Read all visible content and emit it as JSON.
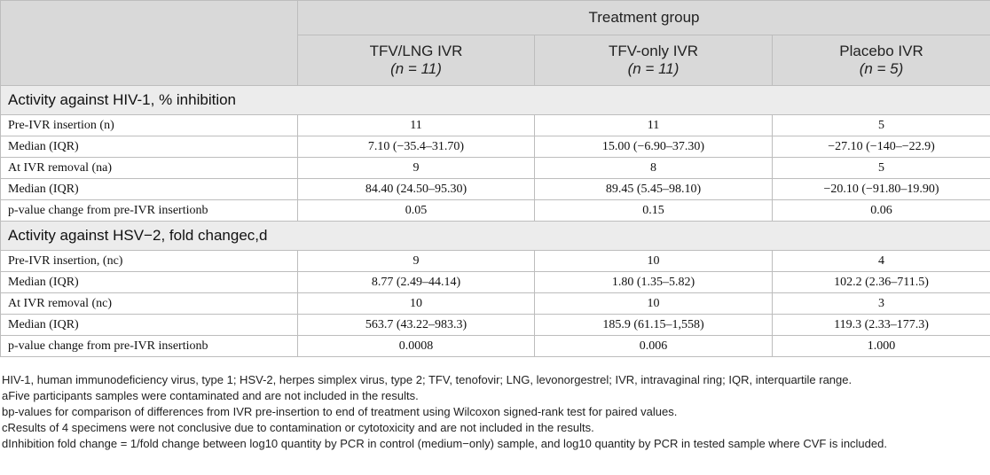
{
  "header": {
    "group_title": "Treatment group",
    "columns": [
      {
        "name": "TFV/LNG IVR",
        "n": "(n = 11)"
      },
      {
        "name": "TFV-only IVR",
        "n": "(n = 11)"
      },
      {
        "name": "Placebo IVR",
        "n": "(n = 5)"
      }
    ]
  },
  "sections": [
    {
      "title": "Activity against HIV-1, % inhibition",
      "rows": [
        {
          "label": "Pre-IVR insertion (n)",
          "values": [
            "11",
            "11",
            "5"
          ]
        },
        {
          "label": "Median (IQR)",
          "values": [
            "7.10 (−35.4–31.70)",
            "15.00 (−6.90–37.30)",
            "−27.10 (−140–−22.9)"
          ]
        },
        {
          "label": "At IVR removal (na)",
          "values": [
            "9",
            "8",
            "5"
          ]
        },
        {
          "label": "Median (IQR)",
          "values": [
            "84.40 (24.50–95.30)",
            "89.45 (5.45–98.10)",
            "−20.10 (−91.80–19.90)"
          ]
        },
        {
          "label": "p-value change from pre-IVR insertionb",
          "values": [
            "0.05",
            "0.15",
            "0.06"
          ]
        }
      ]
    },
    {
      "title": "Activity against HSV−2, fold changec,d",
      "rows": [
        {
          "label": "Pre-IVR insertion, (nc)",
          "values": [
            "9",
            "10",
            "4"
          ]
        },
        {
          "label": "Median (IQR)",
          "values": [
            "8.77 (2.49–44.14)",
            "1.80 (1.35–5.82)",
            "102.2 (2.36–711.5)"
          ]
        },
        {
          "label": "At IVR removal (nc)",
          "values": [
            "10",
            "10",
            "3"
          ]
        },
        {
          "label": "Median (IQR)",
          "values": [
            "563.7 (43.22–983.3)",
            "185.9 (61.15–1,558)",
            "119.3 (2.33–177.3)"
          ]
        },
        {
          "label": "p-value change from pre-IVR insertionb",
          "values": [
            "0.0008",
            "0.006",
            "1.000"
          ]
        }
      ]
    }
  ],
  "footnotes": [
    "HIV-1, human immunodeficiency virus, type 1; HSV-2, herpes simplex virus, type 2; TFV, tenofovir; LNG, levonorgestrel; IVR, intravaginal ring; IQR, interquartile range.",
    "aFive participants samples were contaminated and are not included in the results.",
    "bp-values for comparison of differences from IVR pre-insertion to end of treatment using Wilcoxon signed-rank test for paired values.",
    "cResults of 4 specimens were not conclusive due to contamination or cytotoxicity and are not included in the results.",
    "dInhibition fold change = 1/fold change between log10 quantity by PCR in control (medium−only) sample, and log10 quantity by PCR in tested sample where CVF is included."
  ]
}
